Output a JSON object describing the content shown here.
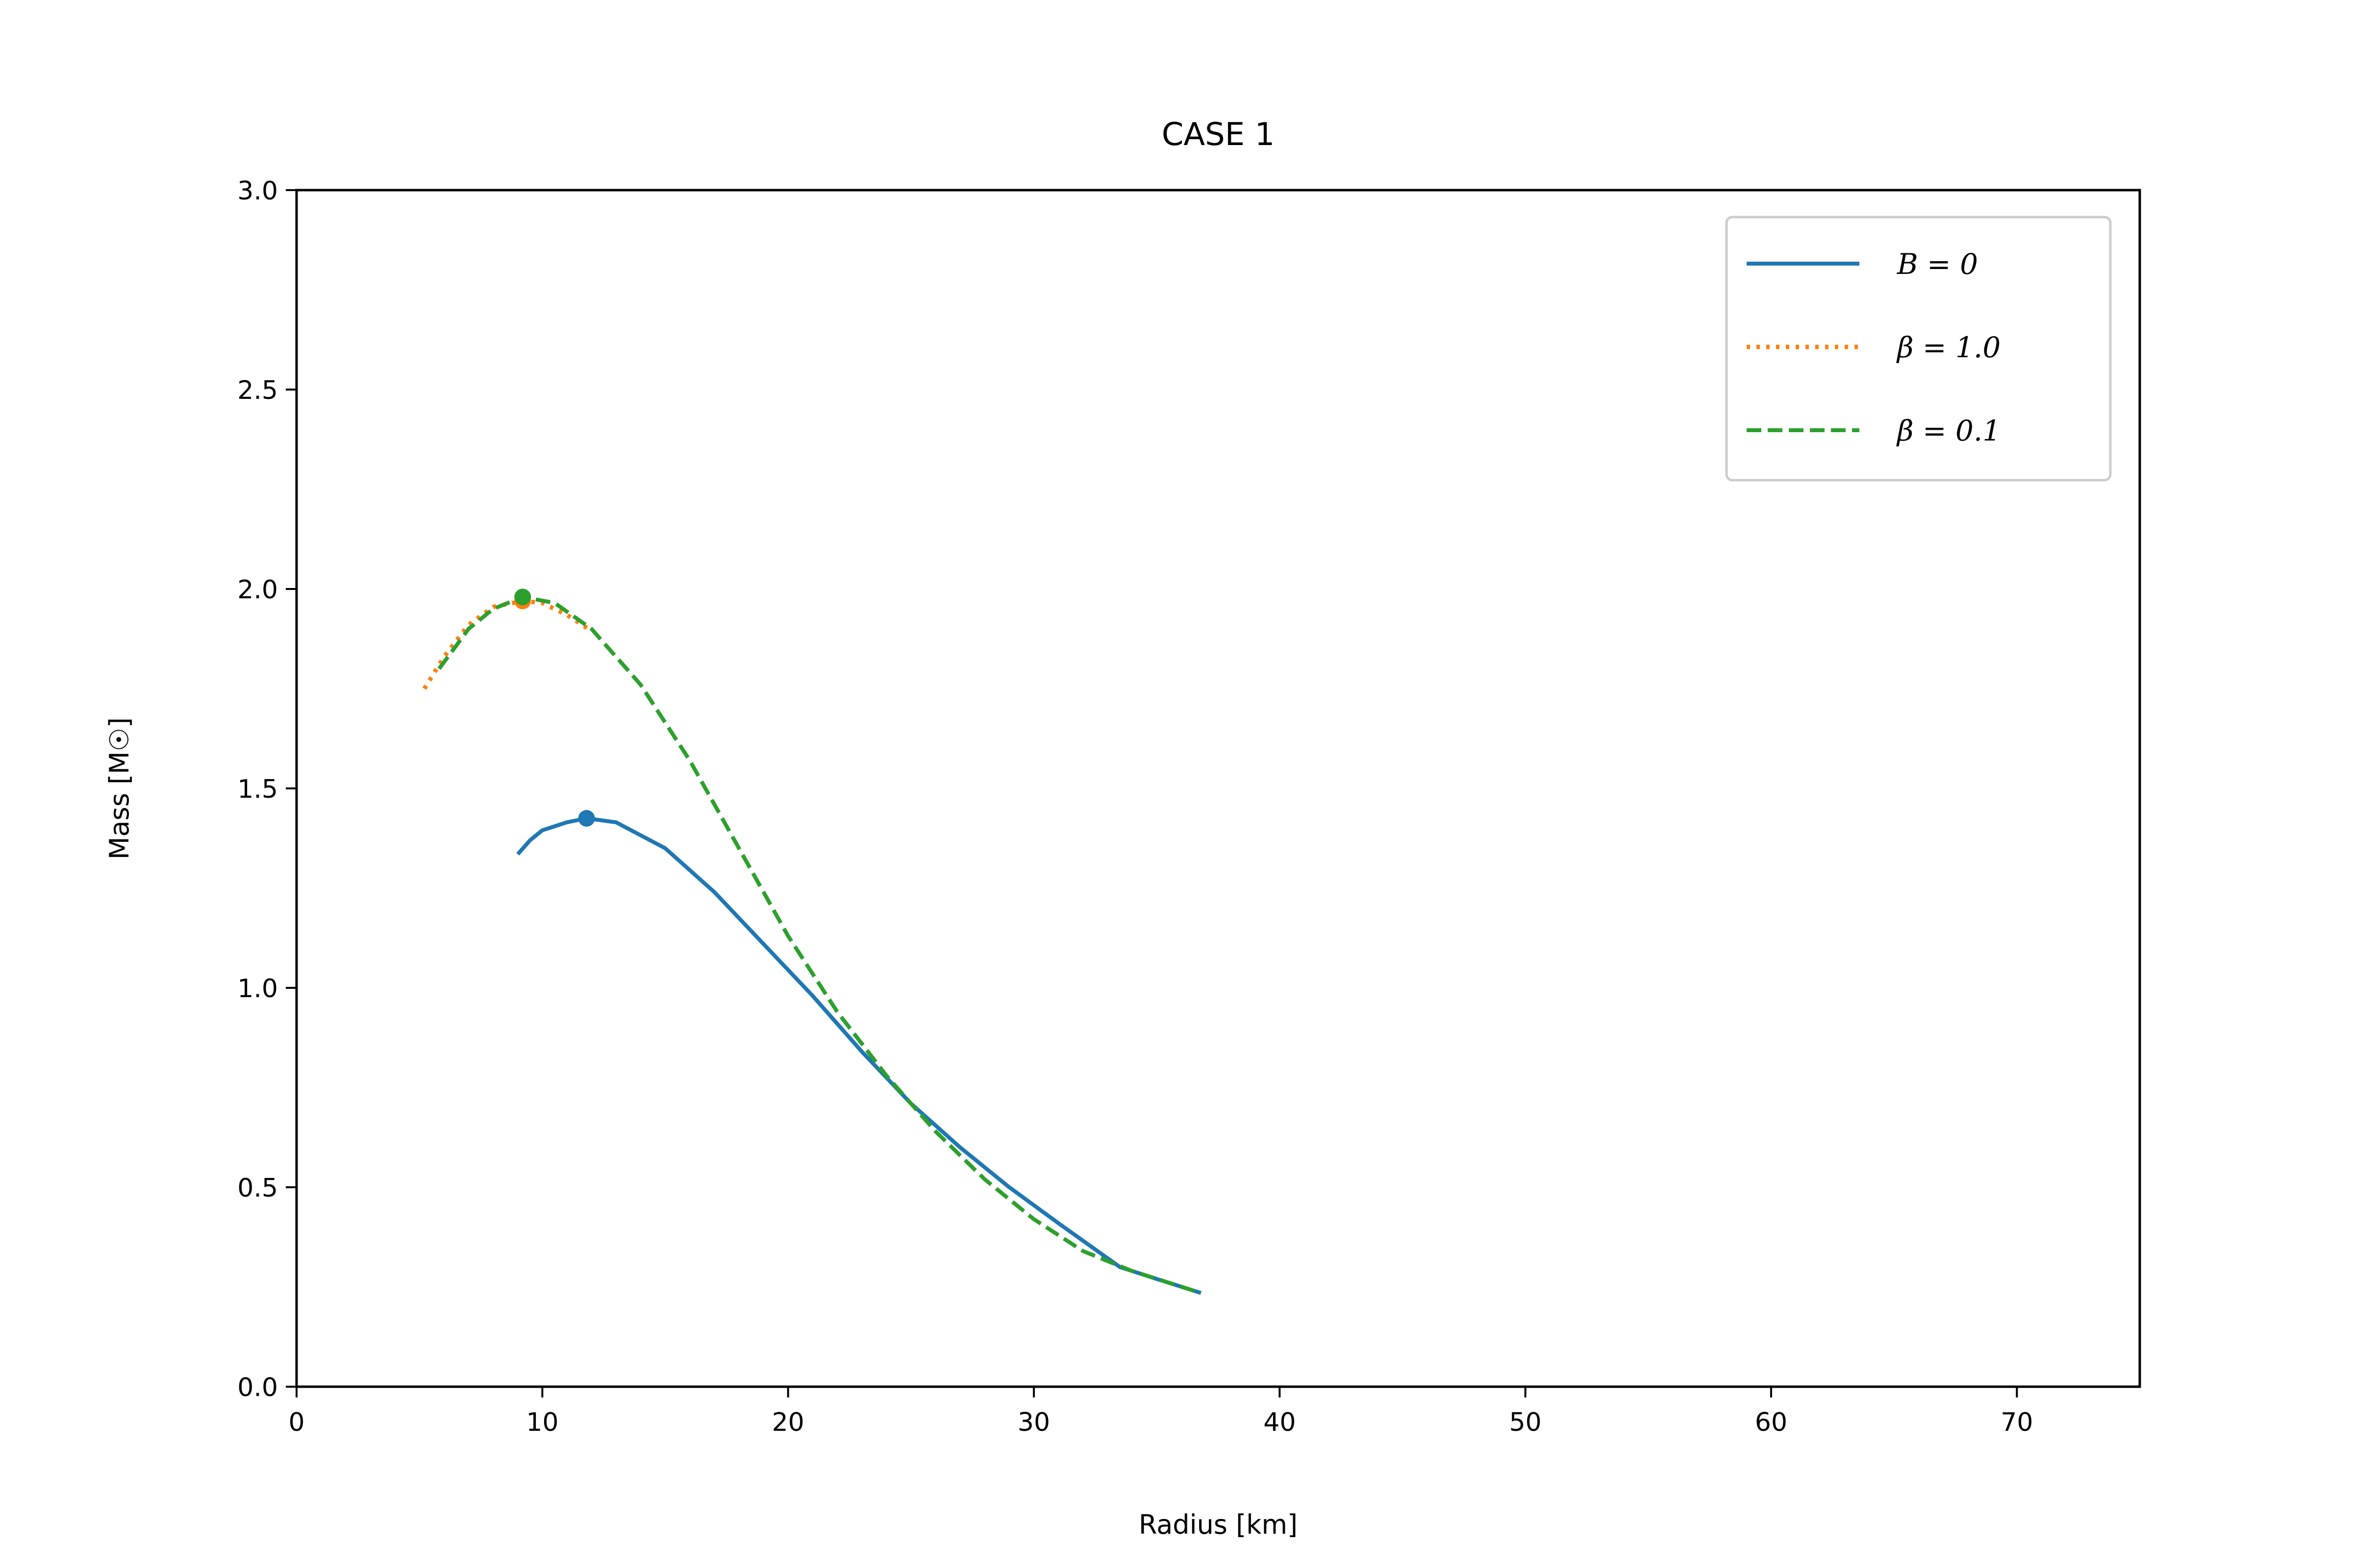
{
  "chart_data": {
    "type": "line",
    "title": "CASE 1",
    "xlabel": "Radius [km]",
    "ylabel": "Mass [M☉]",
    "xlim": [
      0,
      75
    ],
    "ylim": [
      0,
      3.0
    ],
    "xticks": [
      0,
      10,
      20,
      30,
      40,
      50,
      60,
      70
    ],
    "yticks": [
      0.0,
      0.5,
      1.0,
      1.5,
      2.0,
      2.5,
      3.0
    ],
    "xtick_labels": [
      "0",
      "10",
      "20",
      "30",
      "40",
      "50",
      "60",
      "70"
    ],
    "ytick_labels": [
      "0.0",
      "0.5",
      "1.0",
      "1.5",
      "2.0",
      "2.5",
      "3.0"
    ],
    "grid": false,
    "legend": "top-right",
    "series": [
      {
        "name": "B = 0",
        "color": "#1f77b4",
        "style": "solid",
        "x": [
          9.0,
          9.5,
          10.0,
          11.0,
          11.8,
          13.0,
          15.0,
          17.0,
          19.0,
          21.0,
          23.0,
          25.0,
          27.0,
          29.0,
          31.0,
          33.5,
          35.0,
          36.8
        ],
        "y": [
          1.335,
          1.37,
          1.395,
          1.415,
          1.425,
          1.415,
          1.35,
          1.24,
          1.11,
          0.98,
          0.84,
          0.71,
          0.6,
          0.5,
          0.41,
          0.3,
          0.27,
          0.235
        ],
        "peak": {
          "x": 11.8,
          "y": 1.425
        }
      },
      {
        "name": "β = 1.0",
        "color": "#ff7f0e",
        "style": "dotted",
        "x": [
          5.2,
          6.0,
          7.0,
          8.0,
          9.2,
          10.0,
          11.0,
          12.0
        ],
        "y": [
          1.75,
          1.83,
          1.91,
          1.955,
          1.97,
          1.965,
          1.935,
          1.895
        ],
        "peak": {
          "x": 9.2,
          "y": 1.97
        }
      },
      {
        "name": "β = 0.1",
        "color": "#2ca02c",
        "style": "dashed",
        "x": [
          5.8,
          7.0,
          8.0,
          9.2,
          10.5,
          12.0,
          14.0,
          16.0,
          18.0,
          20.0,
          22.0,
          24.0,
          26.0,
          28.0,
          30.0,
          32.0,
          34.0,
          36.8
        ],
        "y": [
          1.8,
          1.9,
          1.95,
          1.98,
          1.965,
          1.9,
          1.76,
          1.57,
          1.35,
          1.13,
          0.94,
          0.78,
          0.64,
          0.52,
          0.42,
          0.34,
          0.29,
          0.235
        ],
        "peak": {
          "x": 9.2,
          "y": 1.98
        }
      }
    ]
  }
}
